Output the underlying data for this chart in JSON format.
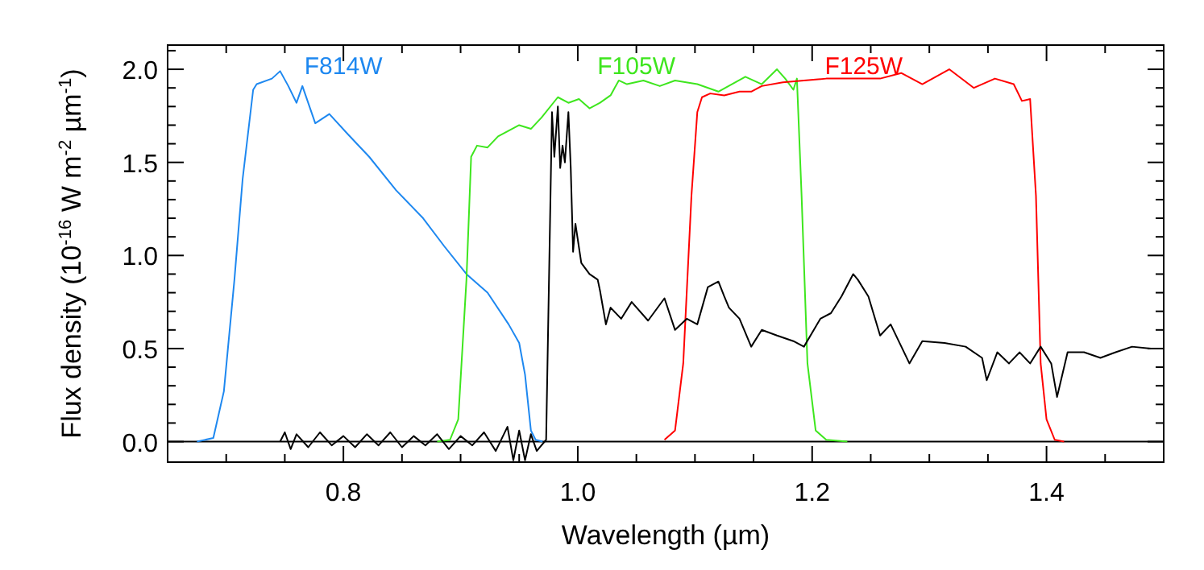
{
  "chart_data": {
    "type": "line",
    "xlabel": "Wavelength (µm)",
    "ylabel": "Flux density (10$^{-16}$ W m$^{-2}$ µm$^{-1}$)",
    "xlim": [
      0.65,
      1.5
    ],
    "ylim": [
      -0.11,
      2.13
    ],
    "xticks": [
      {
        "value": 0.7,
        "label": null
      },
      {
        "value": 0.75,
        "label": null
      },
      0.8,
      {
        "value": 0.85,
        "label": null
      },
      {
        "value": 0.9,
        "label": null
      },
      {
        "value": 0.95,
        "label": null
      },
      {
        "value": 1,
        "label": "1.0"
      },
      {
        "value": 1.05,
        "label": null
      },
      {
        "value": 1.1,
        "label": null
      },
      {
        "value": 1.15,
        "label": null
      },
      1.2,
      {
        "value": 1.25,
        "label": null
      },
      {
        "value": 1.3,
        "label": null
      },
      {
        "value": 1.35,
        "label": null
      },
      1.4,
      {
        "value": 1.45,
        "label": null
      }
    ],
    "yticks": [
      {
        "value": 0,
        "label": "0.0"
      },
      {
        "value": 0.1,
        "label": null
      },
      {
        "value": 0.2,
        "label": null
      },
      {
        "value": 0.3,
        "label": null
      },
      {
        "value": 0.4,
        "label": null
      },
      0.5,
      {
        "value": 0.6,
        "label": null
      },
      {
        "value": 0.7,
        "label": null
      },
      {
        "value": 0.8,
        "label": null
      },
      {
        "value": 0.9,
        "label": null
      },
      {
        "value": 1,
        "label": "1.0"
      },
      {
        "value": 1.1,
        "label": null
      },
      {
        "value": 1.2,
        "label": null
      },
      {
        "value": 1.3,
        "label": null
      },
      {
        "value": 1.4,
        "label": null
      },
      1.5,
      {
        "value": 1.6,
        "label": null
      },
      {
        "value": 1.7,
        "label": null
      },
      {
        "value": 1.8,
        "label": null
      },
      {
        "value": 1.9,
        "label": null
      },
      {
        "value": 2,
        "label": "2.0"
      },
      {
        "value": 2.1,
        "label": null
      }
    ],
    "grid": false,
    "marker": "none",
    "line_style": "solid",
    "ref_lines": [
      {
        "axis": "y",
        "value": 0,
        "color": "#000000"
      }
    ],
    "series": [
      {
        "name": "F814W",
        "color": "#1e88f0",
        "x": [
          0.675,
          0.689,
          0.698,
          0.707,
          0.714,
          0.723,
          0.726,
          0.739,
          0.746,
          0.753,
          0.76,
          0.765,
          0.776,
          0.788,
          0.804,
          0.822,
          0.845,
          0.868,
          0.886,
          0.905,
          0.923,
          0.941,
          0.95,
          0.955,
          0.96,
          0.964,
          0.97
        ],
        "values": [
          0,
          0.02,
          0.27,
          0.87,
          1.41,
          1.89,
          1.92,
          1.95,
          1.99,
          1.91,
          1.82,
          1.91,
          1.71,
          1.76,
          1.65,
          1.53,
          1.35,
          1.2,
          1.05,
          0.9,
          0.8,
          0.63,
          0.53,
          0.36,
          0.06,
          0.01,
          0
        ]
      },
      {
        "name": "F105W",
        "color": "#3ee61e",
        "x": [
          0.88,
          0.891,
          0.898,
          0.905,
          0.909,
          0.914,
          0.923,
          0.932,
          0.941,
          0.95,
          0.96,
          0.969,
          0.983,
          0.992,
          1.001,
          1.01,
          1.019,
          1.028,
          1.035,
          1.042,
          1.056,
          1.07,
          1.083,
          1.102,
          1.12,
          1.143,
          1.157,
          1.17,
          1.177,
          1.184,
          1.187,
          1.191,
          1.196,
          1.203,
          1.212,
          1.23
        ],
        "values": [
          0,
          0.01,
          0.12,
          0.87,
          1.53,
          1.59,
          1.58,
          1.64,
          1.67,
          1.7,
          1.68,
          1.74,
          1.85,
          1.82,
          1.84,
          1.79,
          1.82,
          1.86,
          1.94,
          1.92,
          1.94,
          1.91,
          1.94,
          1.92,
          1.88,
          1.96,
          1.92,
          2.0,
          1.95,
          1.89,
          1.95,
          1.32,
          0.42,
          0.06,
          0.01,
          0
        ]
      },
      {
        "name": "F125W",
        "color": "#ff0000",
        "x": [
          1.074,
          1.083,
          1.09,
          1.097,
          1.102,
          1.106,
          1.113,
          1.125,
          1.138,
          1.148,
          1.157,
          1.175,
          1.193,
          1.212,
          1.225,
          1.239,
          1.258,
          1.276,
          1.294,
          1.317,
          1.338,
          1.356,
          1.372,
          1.379,
          1.386,
          1.391,
          1.395,
          1.4,
          1.407,
          1.415
        ],
        "values": [
          0.01,
          0.06,
          0.42,
          1.32,
          1.77,
          1.85,
          1.87,
          1.86,
          1.88,
          1.88,
          1.91,
          1.93,
          1.94,
          1.95,
          1.95,
          1.95,
          1.95,
          1.98,
          1.92,
          2.0,
          1.9,
          1.95,
          1.92,
          1.83,
          1.84,
          1.32,
          0.42,
          0.12,
          0.01,
          0
        ]
      },
      {
        "color": "#000000",
        "x": [
          0.746,
          0.75,
          0.755,
          0.76,
          0.77,
          0.78,
          0.79,
          0.8,
          0.81,
          0.82,
          0.83,
          0.84,
          0.85,
          0.86,
          0.87,
          0.88,
          0.89,
          0.9,
          0.91,
          0.92,
          0.93,
          0.94,
          0.945,
          0.95,
          0.955,
          0.96,
          0.965,
          0.973,
          0.978,
          0.98,
          0.983,
          0.985,
          0.987,
          0.989,
          0.992,
          0.994,
          0.996,
          0.998,
          1.003,
          1.01,
          1.017,
          1.019,
          1.024,
          1.028,
          1.037,
          1.046,
          1.06,
          1.074,
          1.083,
          1.093,
          1.102,
          1.111,
          1.12,
          1.125,
          1.129,
          1.138,
          1.148,
          1.157,
          1.17,
          1.184,
          1.193,
          1.207,
          1.216,
          1.225,
          1.235,
          1.239,
          1.248,
          1.258,
          1.267,
          1.283,
          1.294,
          1.313,
          1.331,
          1.345,
          1.349,
          1.358,
          1.368,
          1.377,
          1.386,
          1.395,
          1.404,
          1.409,
          1.418,
          1.432,
          1.446,
          1.459,
          1.473,
          1.489
        ],
        "values": [
          0,
          0.05,
          -0.04,
          0.04,
          -0.03,
          0.05,
          -0.02,
          0.03,
          -0.03,
          0.04,
          -0.02,
          0.05,
          -0.03,
          0.03,
          -0.02,
          0.04,
          -0.04,
          0.03,
          -0.02,
          0.05,
          -0.05,
          0.08,
          -0.1,
          0.06,
          -0.1,
          0.04,
          -0.05,
          0.01,
          1.77,
          1.53,
          1.8,
          1.47,
          1.59,
          1.5,
          1.77,
          1.47,
          1.02,
          1.17,
          0.96,
          0.9,
          0.87,
          0.81,
          0.63,
          0.72,
          0.66,
          0.75,
          0.65,
          0.77,
          0.6,
          0.66,
          0.63,
          0.83,
          0.86,
          0.78,
          0.72,
          0.66,
          0.51,
          0.6,
          0.57,
          0.54,
          0.51,
          0.66,
          0.69,
          0.78,
          0.9,
          0.87,
          0.78,
          0.57,
          0.63,
          0.42,
          0.54,
          0.53,
          0.51,
          0.45,
          0.33,
          0.48,
          0.42,
          0.48,
          0.42,
          0.51,
          0.42,
          0.24,
          0.48,
          0.48,
          0.45,
          0.48,
          0.51,
          0.5
        ]
      }
    ]
  }
}
